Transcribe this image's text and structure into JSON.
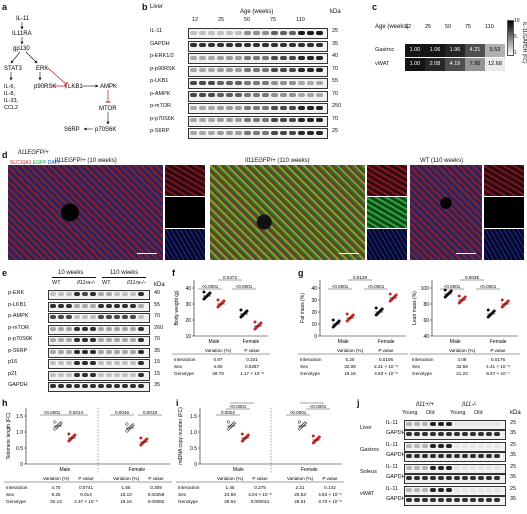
{
  "panel_labels": [
    "a",
    "b",
    "c",
    "d",
    "e",
    "f",
    "g",
    "h",
    "i",
    "j"
  ],
  "a": {
    "nodes": {
      "il11": "IL-11",
      "il11ra": "IL11RA",
      "gp130": "gp130",
      "stat3": "STAT3",
      "erk": "ERK",
      "lkb1": "LKB1",
      "ampk": "AMPK",
      "il_list": "IL-6,\nIL-8,\nIL-33,\nCCL2",
      "p90rsk": "p90RSK",
      "mtor": "MTOR",
      "s6rp": "S6RP",
      "p70s6k": "p70S6K"
    }
  },
  "b": {
    "tissue": "Liver",
    "age_title": "Age (weeks)",
    "ages": [
      "12",
      "25",
      "50",
      "75",
      "110"
    ],
    "rows": [
      "IL-11",
      "GAPDH",
      "p-ERK1/2",
      "p-p90RSK",
      "p-LKB1",
      "p-AMPK",
      "p-mTOR",
      "p-p70S6K",
      "p-S6RP"
    ],
    "kda": [
      "25",
      "35",
      "40",
      "70",
      "55",
      "70",
      "250",
      "70",
      "25"
    ],
    "kda_header": "kDa"
  },
  "c": {
    "age_title": "Age (weeks)",
    "ages": [
      "12",
      "25",
      "50",
      "75",
      "110"
    ],
    "rows": [
      {
        "name": "Gastroc",
        "values": [
          "1.00",
          "1.06",
          "1.96",
          "4.21",
          "9.53"
        ]
      },
      {
        "name": "vWAT",
        "values": [
          "1.00",
          "2.08",
          "4.19",
          "7.95",
          "12.68"
        ]
      }
    ],
    "scale_label": "IL-11/GAPDH (FC)",
    "scale_ticks": [
      "10",
      "5",
      "1"
    ]
  },
  "d": {
    "genotype_header": "Il11EGFP/+",
    "titles": [
      "Il11EGFP/+ (10 weeks)",
      "Il11EGFP/+ (110 weeks)",
      "WT (110 weeks)"
    ],
    "stain": {
      "a": "SLC10A1",
      "b": "EGFP",
      "c": "DAPI"
    }
  },
  "e": {
    "groups": [
      "10 weeks",
      "110 weeks"
    ],
    "genotypes": [
      "WT",
      "Il11ra-/-",
      "WT",
      "Il11ra-/-"
    ],
    "rows": [
      "p-ERK",
      "p-LKB1",
      "p-AMPK",
      "p-mTOR",
      "p-p70S6K",
      "p-S6RP",
      "p16",
      "p21",
      "GAPDH"
    ],
    "kda": [
      "40",
      "55",
      "70",
      "260",
      "70",
      "35",
      "15",
      "15",
      "35"
    ],
    "kda_header": "kDa"
  },
  "legend_wt": {
    "wt": "WT",
    "ko": "Il11ra-/-"
  },
  "legend_age": {
    "young": "Young",
    "old": "Old"
  },
  "f": {
    "ylabel": "Body weight (g)",
    "yticks": [
      "40",
      "30",
      "20",
      "10"
    ],
    "groups": [
      "Male",
      "Female"
    ],
    "pvals": [
      "<0.0001",
      "<0.0001",
      "0.0472"
    ],
    "table": {
      "hdr": [
        "Variation (%)",
        "P value"
      ],
      "rows": [
        [
          "Interaction",
          "0.87",
          "0.331"
        ],
        [
          "Sex",
          "4.60",
          "0.0287"
        ],
        [
          "Genotype",
          "49.70",
          "1.17 × 10⁻⁸"
        ]
      ]
    }
  },
  "g1": {
    "ylabel": "Fat mass (%)",
    "yticks": [
      "40",
      "30",
      "20",
      "10",
      "0"
    ],
    "groups": [
      "Male",
      "Female"
    ],
    "pvals": [
      "<0.0001",
      "<0.0001",
      "0.0129"
    ],
    "table": {
      "hdr": [
        "Variation (%)",
        "P value"
      ],
      "rows": [
        [
          "Interaction",
          "5.20",
          "0.0106"
        ],
        [
          "Sex",
          "32.08",
          "2.21 × 10⁻⁸"
        ],
        [
          "Genotype",
          "19.16",
          "4.93 × 10⁻⁶"
        ]
      ]
    }
  },
  "g2": {
    "ylabel": "Lean mass (%)",
    "yticks": [
      "100",
      "80",
      "60",
      "40"
    ],
    "groups": [
      "Male",
      "Female"
    ],
    "pvals": [
      "<0.0001",
      "<0.0001",
      "0.0035"
    ],
    "table": {
      "hdr": [
        "Variation (%)",
        "P value"
      ],
      "rows": [
        [
          "Interaction",
          "4.08",
          "0.0176"
        ],
        [
          "Sex",
          "33.59",
          "4.41 × 10⁻⁸"
        ],
        [
          "Genotype",
          "21.22",
          "8.67 × 10⁻⁷"
        ]
      ]
    }
  },
  "h": {
    "ylabel": "Telomere length (FC)",
    "yticks": [
      "1.5",
      "1.0",
      "0.5",
      "0"
    ],
    "groups": [
      "Male",
      "Female"
    ],
    "pvals": [
      "<0.0001",
      "0.0014",
      "0.0046",
      "0.0018"
    ],
    "table": {
      "hdr": [
        "Variation (%)",
        "P value",
        "Variation (%)",
        "P value"
      ],
      "rows": [
        [
          "Interaction",
          "4.70",
          "0.0741",
          "1.55",
          "0.309"
        ],
        [
          "Sex",
          "9.25",
          "0.014",
          "15.10",
          "0.00258"
        ],
        [
          "Genotype",
          "32.13",
          "2.37 × 10⁻⁵",
          "19.15",
          "0.00082"
        ]
      ]
    }
  },
  "i": {
    "ylabel": "mtDNA copy number (FC)",
    "yticks": [
      "1.5",
      "1.0",
      "0.5",
      "0"
    ],
    "groups": [
      "Male",
      "Female"
    ],
    "pvals": [
      "0.0002",
      "<0.0001",
      "0.0146",
      "<0.0001",
      "<0.0001",
      "0.0169"
    ],
    "table": {
      "hdr": [
        "Variation (%)",
        "P value",
        "Variation (%)",
        "P value"
      ],
      "rows": [
        [
          "Interaction",
          "1.45",
          "0.275",
          "2.21",
          "0.142"
        ],
        [
          "Sex",
          "24.59",
          "4.04 × 10⁻⁶",
          "20.53",
          "4.83 × 10⁻⁶"
        ],
        [
          "Genotype",
          "29.64",
          "0.000011",
          "28.51",
          "3.70 × 10⁻⁶"
        ]
      ]
    }
  },
  "j": {
    "genotypes": [
      "Il11+/+",
      "Il11-/-"
    ],
    "ages": [
      "Young",
      "Old",
      "Young",
      "Old"
    ],
    "tissues": [
      "Liver",
      "Gastroc",
      "Soleus",
      "vWAT"
    ],
    "bands": [
      "IL-11",
      "GAPDH"
    ],
    "kda": [
      "25",
      "35"
    ],
    "kda_header": "kDa"
  }
}
